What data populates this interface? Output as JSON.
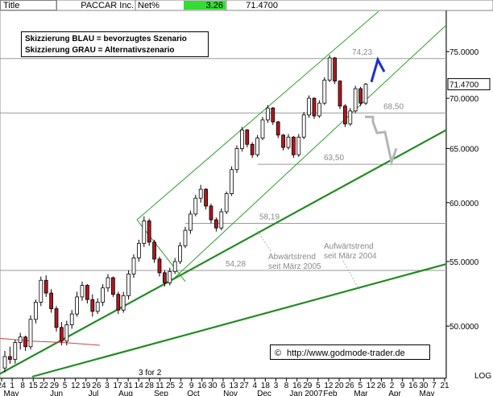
{
  "header": {
    "title_label": "Title",
    "name": "PACCAR Inc.",
    "netpct_label": "Net%",
    "netpct_value": "3.26",
    "last_value": "71.4700",
    "netpct_color": "#33dd33"
  },
  "legend": {
    "line1": "Skizzierung BLAU = bevorzugtes Szenario",
    "line2": "Skizzierung GRAU = Alternativszenario"
  },
  "credit": "http://www.godmode-trader.de",
  "credit_symbol": "©",
  "colors": {
    "channel": "#2e9e2e",
    "trend": "#228b22",
    "level": "#9a9a9a",
    "blue_scenario": "#1c2fd0",
    "grey_scenario": "#b5b5b5",
    "candle_up": "#ffffff",
    "candle_down": "#b0171f",
    "ma": "#cc4444"
  },
  "chart_data": {
    "type": "candlestick",
    "ylim": [
      46.4,
      79.6
    ],
    "y_scale": "log",
    "y_ticks": [
      "75.0000",
      "70.0000",
      "65.0000",
      "60.0000",
      "55.0000",
      "50.0000"
    ],
    "y_tick_values": [
      75,
      70,
      65,
      60,
      55,
      50
    ],
    "price_box": "71.4700",
    "scale_label": "LOG",
    "x_day_labels": [
      "24",
      "1",
      "8",
      "15",
      "22",
      "29",
      "5",
      "12",
      "19",
      "26",
      "3",
      "17",
      "31",
      "14",
      "28",
      "11",
      "25",
      "2",
      "9",
      "16",
      "30",
      "6",
      "13",
      "27",
      "4",
      "18",
      "3",
      "8",
      "16",
      "29",
      "5",
      "12",
      "20",
      "26",
      "5",
      "12",
      "26",
      "2",
      "9",
      "16",
      "30",
      "7",
      "21"
    ],
    "x_month_labels": [
      "May",
      "Jun",
      "Jul",
      "Aug",
      "Sep",
      "Oct",
      "Nov",
      "Dec",
      "Jan 2007",
      "Feb",
      "Mar",
      "Apr",
      "May"
    ],
    "split_note": "3 for 2",
    "levels": [
      {
        "value": 74.23,
        "label": "74,23"
      },
      {
        "value": 68.5,
        "label": "68,50"
      },
      {
        "value": 63.5,
        "label": "63,50"
      },
      {
        "value": 58.19,
        "label": "58,19"
      },
      {
        "value": 54.28,
        "label": "54,28"
      }
    ],
    "annotations": [
      {
        "line1": "Aufwärtstrend",
        "line2": "seit März 2004"
      },
      {
        "line1": "Abwärtstrend",
        "line2": "seit März 2005"
      }
    ],
    "candles": [
      [
        47.0,
        48.2,
        46.7,
        47.8
      ],
      [
        47.8,
        48.5,
        47.3,
        47.6
      ],
      [
        47.6,
        49.0,
        47.3,
        48.8
      ],
      [
        48.8,
        49.5,
        48.3,
        49.2
      ],
      [
        49.2,
        49.3,
        48.2,
        48.5
      ],
      [
        48.5,
        50.8,
        48.3,
        50.5
      ],
      [
        50.5,
        52.0,
        50.2,
        51.8
      ],
      [
        51.8,
        53.8,
        51.5,
        53.5
      ],
      [
        53.5,
        53.9,
        52.2,
        52.5
      ],
      [
        52.5,
        52.8,
        51.0,
        51.3
      ],
      [
        51.3,
        51.5,
        49.6,
        49.9
      ],
      [
        49.9,
        50.3,
        48.6,
        48.9
      ],
      [
        48.9,
        50.4,
        48.6,
        50.1
      ],
      [
        50.1,
        51.2,
        49.8,
        50.9
      ],
      [
        50.9,
        52.6,
        50.7,
        52.2
      ],
      [
        52.2,
        53.4,
        51.9,
        53.1
      ],
      [
        53.1,
        53.2,
        51.7,
        52.0
      ],
      [
        52.0,
        52.4,
        50.7,
        51.1
      ],
      [
        51.1,
        52.1,
        50.9,
        51.8
      ],
      [
        51.8,
        53.2,
        51.5,
        52.9
      ],
      [
        52.9,
        54.0,
        52.6,
        53.7
      ],
      [
        53.7,
        53.8,
        52.2,
        52.4
      ],
      [
        52.4,
        52.6,
        50.9,
        51.2
      ],
      [
        51.2,
        52.6,
        51.0,
        52.3
      ],
      [
        52.3,
        54.3,
        52.0,
        54.0
      ],
      [
        54.0,
        55.6,
        53.7,
        55.3
      ],
      [
        55.3,
        56.8,
        55.0,
        56.5
      ],
      [
        56.5,
        58.8,
        56.2,
        58.4
      ],
      [
        58.4,
        58.6,
        56.3,
        56.6
      ],
      [
        56.6,
        56.8,
        54.9,
        55.2
      ],
      [
        55.2,
        55.4,
        53.8,
        54.1
      ],
      [
        54.1,
        54.3,
        53.0,
        53.3
      ],
      [
        53.3,
        54.5,
        53.1,
        54.2
      ],
      [
        54.2,
        55.3,
        54.0,
        55.0
      ],
      [
        55.0,
        56.6,
        54.8,
        56.3
      ],
      [
        56.3,
        57.9,
        56.1,
        57.6
      ],
      [
        57.6,
        59.3,
        57.3,
        59.0
      ],
      [
        59.0,
        60.7,
        58.8,
        60.4
      ],
      [
        60.4,
        61.6,
        60.0,
        61.2
      ],
      [
        61.2,
        61.3,
        59.4,
        59.7
      ],
      [
        59.7,
        59.9,
        58.2,
        58.5
      ],
      [
        58.5,
        58.7,
        57.5,
        57.8
      ],
      [
        57.8,
        59.5,
        57.6,
        59.2
      ],
      [
        59.2,
        61.0,
        59.0,
        60.8
      ],
      [
        60.8,
        63.3,
        60.6,
        63.0
      ],
      [
        63.0,
        65.3,
        62.7,
        65.0
      ],
      [
        65.0,
        67.1,
        64.7,
        66.8
      ],
      [
        66.8,
        66.9,
        65.1,
        65.4
      ],
      [
        65.4,
        65.6,
        64.1,
        64.4
      ],
      [
        64.4,
        66.3,
        64.2,
        66.0
      ],
      [
        66.0,
        68.1,
        65.8,
        67.8
      ],
      [
        67.8,
        69.3,
        67.5,
        69.0
      ],
      [
        69.0,
        69.1,
        67.3,
        67.6
      ],
      [
        67.6,
        67.7,
        66.0,
        66.3
      ],
      [
        66.3,
        66.4,
        64.8,
        65.1
      ],
      [
        65.1,
        66.4,
        64.9,
        66.1
      ],
      [
        66.1,
        66.2,
        64.1,
        64.4
      ],
      [
        64.4,
        66.4,
        64.2,
        66.1
      ],
      [
        66.1,
        68.6,
        65.9,
        68.3
      ],
      [
        68.3,
        70.3,
        68.0,
        70.0
      ],
      [
        70.0,
        70.1,
        67.9,
        68.2
      ],
      [
        68.2,
        69.8,
        68.0,
        69.5
      ],
      [
        69.5,
        72.2,
        69.3,
        71.9
      ],
      [
        71.9,
        74.6,
        71.7,
        74.3
      ],
      [
        74.3,
        74.4,
        71.5,
        71.8
      ],
      [
        71.8,
        71.9,
        68.9,
        69.2
      ],
      [
        69.2,
        69.4,
        67.1,
        67.4
      ],
      [
        67.4,
        69.0,
        67.2,
        68.7
      ],
      [
        68.7,
        71.3,
        68.5,
        71.0
      ],
      [
        71.0,
        71.2,
        69.2,
        69.5
      ],
      [
        69.5,
        71.6,
        69.3,
        71.47
      ]
    ]
  }
}
